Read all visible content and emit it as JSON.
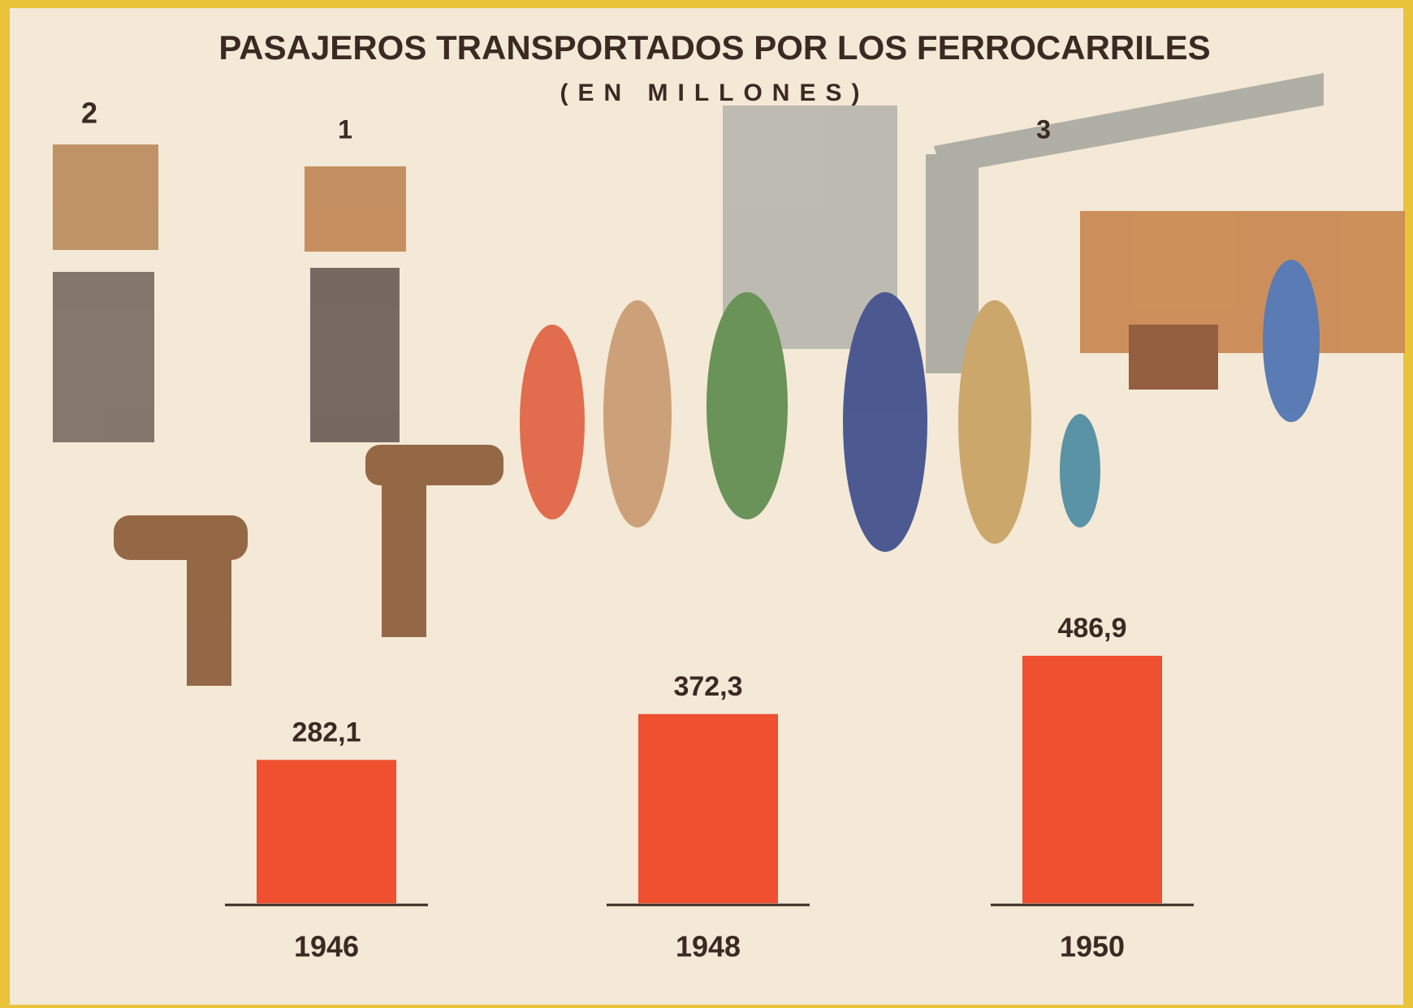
{
  "chart_data": {
    "type": "bar",
    "title": "PASAJEROS TRANSPORTADOS POR LOS FERROCARRILES",
    "subtitle": "(EN MILLONES)",
    "annotations": [
      "2",
      "1",
      "3"
    ],
    "categories": [
      "1946",
      "1948",
      "1950"
    ],
    "values": [
      282.1,
      372.3,
      486.9
    ],
    "value_labels": [
      "282,1",
      "372,3",
      "486,9"
    ],
    "color": "#ee5030"
  }
}
